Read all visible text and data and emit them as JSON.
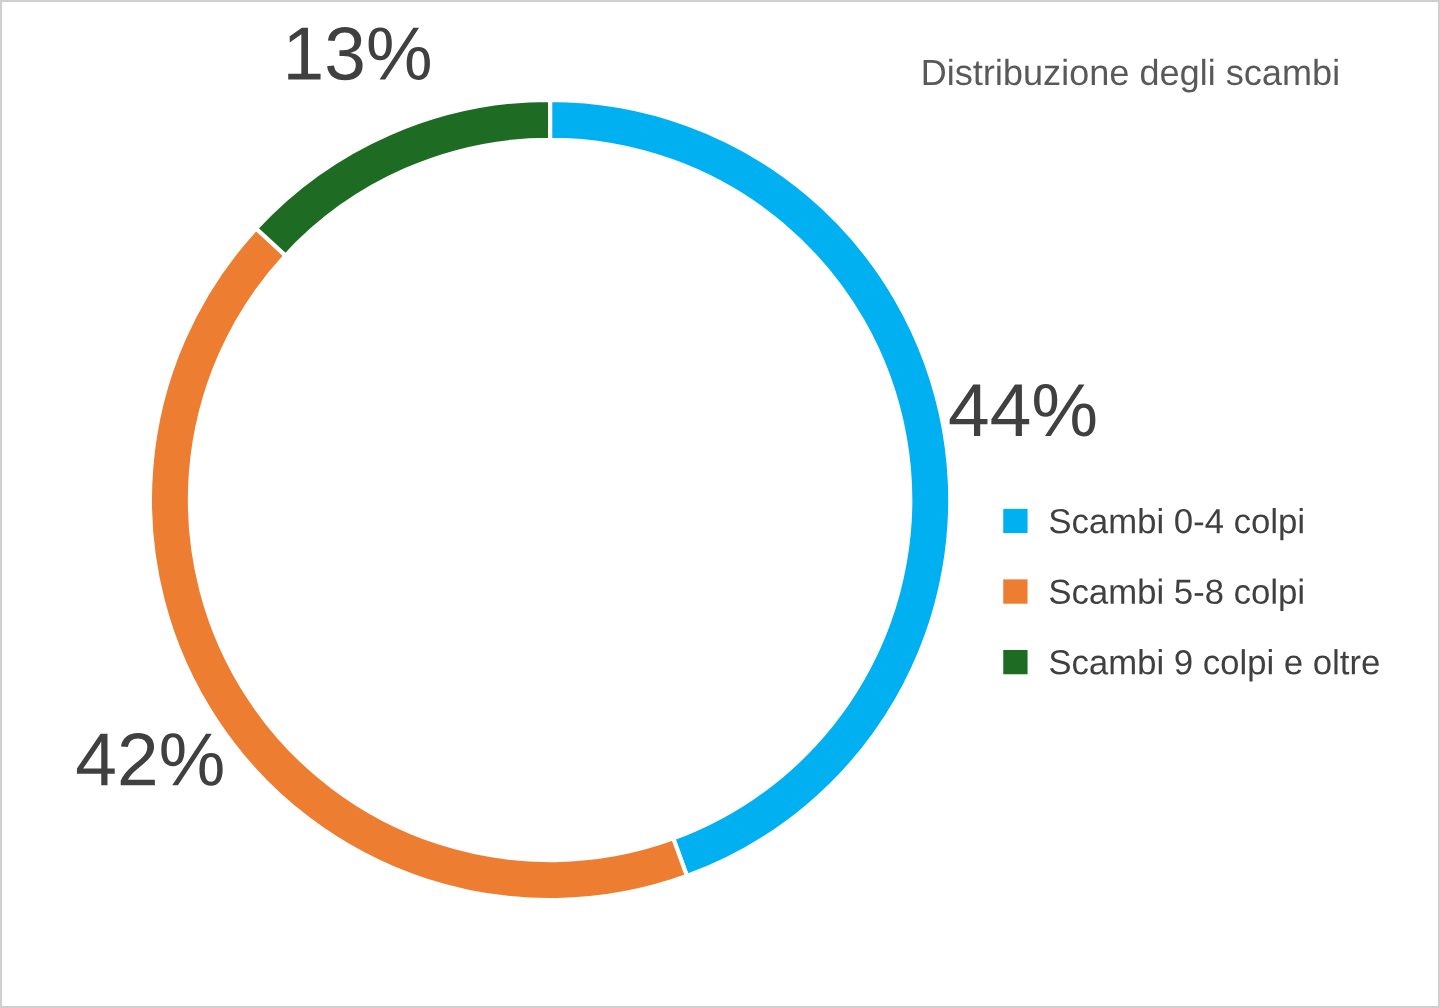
{
  "chart_data": {
    "type": "donut",
    "title": "Distribuzione degli scambi",
    "categories": [
      "Scambi 0-4 colpi",
      "Scambi 5-8 colpi",
      "Scambi 9 colpi e oltre"
    ],
    "values": [
      44,
      42,
      13
    ],
    "colors": [
      "#00b0f0",
      "#ed7d31",
      "#1e6b24"
    ],
    "value_labels": [
      "44%",
      "42%",
      "13%"
    ],
    "legend": "right"
  }
}
